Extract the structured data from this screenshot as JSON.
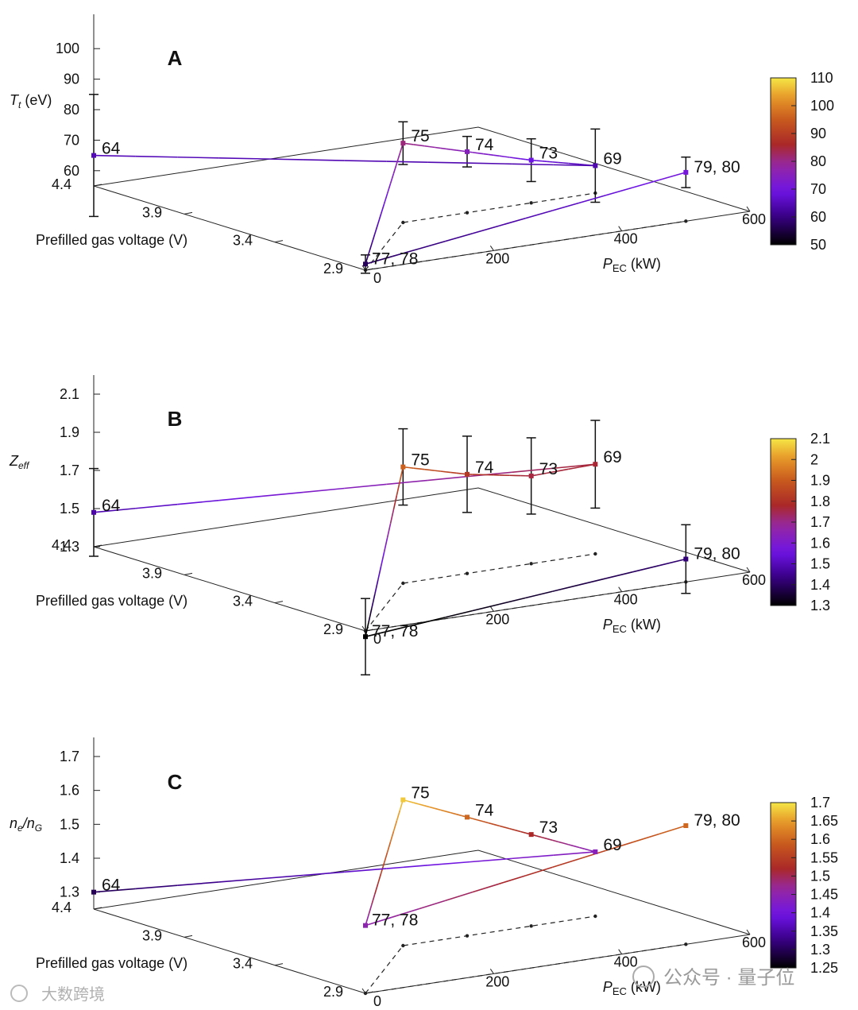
{
  "axes": {
    "x_ticks": [
      "0",
      "200",
      "400",
      "600"
    ],
    "y_ticks": [
      "2.9",
      "3.4",
      "3.9",
      "4.4"
    ],
    "y_label": "Prefilled gas voltage (V)",
    "x_label_main": "P",
    "x_label_sub": "EC",
    "x_label_unit": " (kW)"
  },
  "chart_data": [
    {
      "type": "line",
      "panel": "A",
      "zlabel_main": "T",
      "zlabel_sub": "t",
      "zlabel_unit": " (eV)",
      "z_ticks": [
        "60",
        "70",
        "80",
        "90",
        "100"
      ],
      "zlim": [
        55,
        105
      ],
      "colorbar": {
        "ticks": [
          "50",
          "60",
          "70",
          "80",
          "90",
          "100",
          "110"
        ],
        "range": [
          50,
          110
        ]
      },
      "points": [
        {
          "label": "64",
          "p_ec": 0,
          "voltage": 4.4,
          "z": 65,
          "err": 20
        },
        {
          "label": "77, 78",
          "p_ec": 0,
          "voltage": 2.9,
          "z": 57,
          "err": 3
        },
        {
          "label": "75",
          "p_ec": 200,
          "voltage": 3.4,
          "z": 81,
          "err": 7
        },
        {
          "label": "74",
          "p_ec": 300,
          "voltage": 3.4,
          "z": 75,
          "err": 5
        },
        {
          "label": "73",
          "p_ec": 400,
          "voltage": 3.4,
          "z": 69,
          "err": 7
        },
        {
          "label": "69",
          "p_ec": 500,
          "voltage": 3.4,
          "z": 64,
          "err": 12
        },
        {
          "label": "79, 80",
          "p_ec": 500,
          "voltage": 2.9,
          "z": 71,
          "err": 5
        }
      ],
      "segments": [
        [
          "64",
          "69"
        ],
        [
          "77, 78",
          "75"
        ],
        [
          "75",
          "74"
        ],
        [
          "74",
          "73"
        ],
        [
          "73",
          "69"
        ],
        [
          "77, 78",
          "79, 80"
        ]
      ]
    },
    {
      "type": "line",
      "panel": "B",
      "zlabel_main": "Z",
      "zlabel_sub": "eff",
      "zlabel_unit": "",
      "z_ticks": [
        "1.3",
        "1.5",
        "1.7",
        "1.9",
        "2.1"
      ],
      "zlim": [
        1.3,
        2.1
      ],
      "colorbar": {
        "ticks": [
          "1.3",
          "1.4",
          "1.5",
          "1.6",
          "1.7",
          "1.8",
          "1.9",
          "2",
          "2.1"
        ],
        "range": [
          1.3,
          2.1
        ]
      },
      "points": [
        {
          "label": "64",
          "p_ec": 0,
          "voltage": 4.4,
          "z": 1.48,
          "err": 0.23
        },
        {
          "label": "77, 78",
          "p_ec": 0,
          "voltage": 2.9,
          "z": 1.27,
          "err": 0.2
        },
        {
          "label": "75",
          "p_ec": 200,
          "voltage": 3.4,
          "z": 1.91,
          "err": 0.2
        },
        {
          "label": "74",
          "p_ec": 300,
          "voltage": 3.4,
          "z": 1.82,
          "err": 0.2
        },
        {
          "label": "73",
          "p_ec": 400,
          "voltage": 3.4,
          "z": 1.76,
          "err": 0.2
        },
        {
          "label": "69",
          "p_ec": 500,
          "voltage": 3.4,
          "z": 1.77,
          "err": 0.23
        },
        {
          "label": "79, 80",
          "p_ec": 500,
          "voltage": 2.9,
          "z": 1.42,
          "err": 0.18
        }
      ],
      "segments": [
        [
          "64",
          "69"
        ],
        [
          "77, 78",
          "75"
        ],
        [
          "75",
          "74"
        ],
        [
          "74",
          "73"
        ],
        [
          "73",
          "69"
        ],
        [
          "77, 78",
          "79, 80"
        ]
      ]
    },
    {
      "type": "line",
      "panel": "C",
      "zlabel_main": "n",
      "zlabel_sub": "e",
      "zlabel_mid": "/n",
      "zlabel_sub2": "G",
      "z_ticks": [
        "1.3",
        "1.4",
        "1.5",
        "1.6",
        "1.7"
      ],
      "zlim": [
        1.25,
        1.7
      ],
      "colorbar": {
        "ticks": [
          "1.25",
          "1.3",
          "1.35",
          "1.4",
          "1.45",
          "1.5",
          "1.55",
          "1.6",
          "1.65",
          "1.7"
        ],
        "range": [
          1.25,
          1.7
        ]
      },
      "points": [
        {
          "label": "64",
          "p_ec": 0,
          "voltage": 4.4,
          "z": 1.3
        },
        {
          "label": "77, 78",
          "p_ec": 0,
          "voltage": 2.9,
          "z": 1.45
        },
        {
          "label": "75",
          "p_ec": 200,
          "voltage": 3.4,
          "z": 1.68
        },
        {
          "label": "74",
          "p_ec": 300,
          "voltage": 3.4,
          "z": 1.6
        },
        {
          "label": "73",
          "p_ec": 400,
          "voltage": 3.4,
          "z": 1.52
        },
        {
          "label": "69",
          "p_ec": 500,
          "voltage": 3.4,
          "z": 1.44
        },
        {
          "label": "79, 80",
          "p_ec": 500,
          "voltage": 2.9,
          "z": 1.6
        }
      ],
      "segments": [
        [
          "77, 78",
          "75"
        ],
        [
          "75",
          "74"
        ],
        [
          "74",
          "73"
        ],
        [
          "73",
          "69"
        ],
        [
          "77, 78",
          "79, 80"
        ],
        [
          "64",
          "69"
        ]
      ]
    }
  ],
  "watermarks": {
    "center": "公众号 · 量子位",
    "left": "大数跨境"
  }
}
